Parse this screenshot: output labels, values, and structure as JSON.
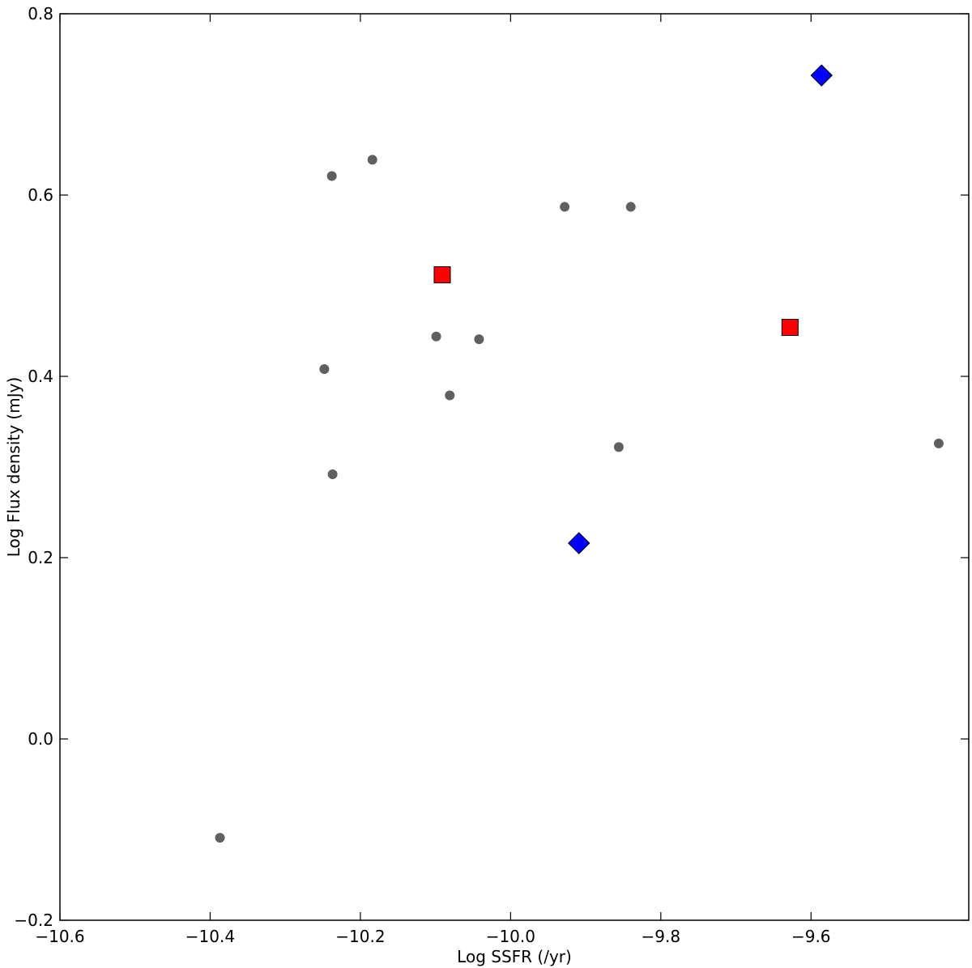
{
  "chart_data": {
    "type": "scatter",
    "x_label": "Log SSFR (/yr)",
    "y_label": "Log Flux density (mJy)",
    "xlim": [
      -10.6,
      -9.39
    ],
    "ylim": [
      -0.2,
      0.8
    ],
    "xticks": [
      {
        "value": -10.6,
        "label": "−10.6"
      },
      {
        "value": -10.4,
        "label": "−10.4"
      },
      {
        "value": -10.2,
        "label": "−10.2"
      },
      {
        "value": -10.0,
        "label": "−10.0"
      },
      {
        "value": -9.8,
        "label": "−9.8"
      },
      {
        "value": -9.6,
        "label": "−9.6"
      }
    ],
    "yticks": [
      {
        "value": -0.2,
        "label": "−0.2"
      },
      {
        "value": 0.0,
        "label": "0.0"
      },
      0.2,
      0.4,
      0.6,
      0.8
    ],
    "grid": false,
    "series": [
      {
        "color": "#606060",
        "marker": "circle",
        "x": [
          -10.238,
          -10.184,
          -9.928,
          -9.84,
          -10.099,
          -10.042,
          -10.248,
          -10.081,
          -10.237,
          -9.856,
          -9.43,
          -10.387
        ],
        "y": [
          0.621,
          0.639,
          0.587,
          0.587,
          0.444,
          0.441,
          0.408,
          0.379,
          0.292,
          0.322,
          0.326,
          -0.109
        ]
      },
      {
        "color": "#ff0000",
        "marker": "square",
        "x": [
          -10.091,
          -9.628
        ],
        "y": [
          0.512,
          0.454
        ]
      },
      {
        "color": "#0000ff",
        "marker": "diamond",
        "x": [
          -9.586,
          -9.909
        ],
        "y": [
          0.732,
          0.216
        ]
      }
    ]
  }
}
